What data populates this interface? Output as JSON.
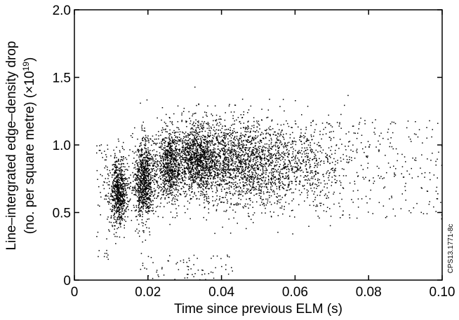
{
  "chart_data": {
    "type": "scatter",
    "title": "",
    "xlabel": "Time since previous ELM (s)",
    "ylabel_line1": "Line–intergrated edge–density drop",
    "ylabel_line2_prefix": "(no. per square metre) (×10",
    "ylabel_line2_exp": "19",
    "ylabel_line2_suffix": ")",
    "x_ticks": [
      {
        "value": 0,
        "label": "0"
      },
      {
        "value": 0.02,
        "label": "0.02"
      },
      {
        "value": 0.04,
        "label": "0.04"
      },
      {
        "value": 0.06,
        "label": "0.06"
      },
      {
        "value": 0.08,
        "label": "0.08"
      },
      {
        "value": 0.1,
        "label": "0.10"
      }
    ],
    "y_ticks": [
      {
        "value": 0,
        "label": "0"
      },
      {
        "value": 0.5,
        "label": "0.5"
      },
      {
        "value": 1.0,
        "label": "1.0"
      },
      {
        "value": 1.5,
        "label": "1.5"
      },
      {
        "value": 2.0,
        "label": "2.0"
      }
    ],
    "xlim": [
      0,
      0.1
    ],
    "ylim": [
      0,
      2.0
    ],
    "grid": false,
    "legend": "none",
    "marker_color": "#000000",
    "side_label": "CPS13.1771-8c",
    "clusters": [
      {
        "x": 0.012,
        "x_spread": 0.0012,
        "y": 0.66,
        "y_spread": 0.13
      },
      {
        "x": 0.019,
        "x_spread": 0.0014,
        "y": 0.74,
        "y_spread": 0.15
      },
      {
        "x": 0.026,
        "x_spread": 0.0018,
        "y": 0.85,
        "y_spread": 0.14
      },
      {
        "x": 0.033,
        "x_spread": 0.003,
        "y": 0.9,
        "y_spread": 0.13
      },
      {
        "x": 0.042,
        "x_spread": 0.008,
        "y": 0.88,
        "y_spread": 0.16
      },
      {
        "x": 0.055,
        "x_spread": 0.01,
        "y": 0.85,
        "y_spread": 0.17
      }
    ]
  }
}
